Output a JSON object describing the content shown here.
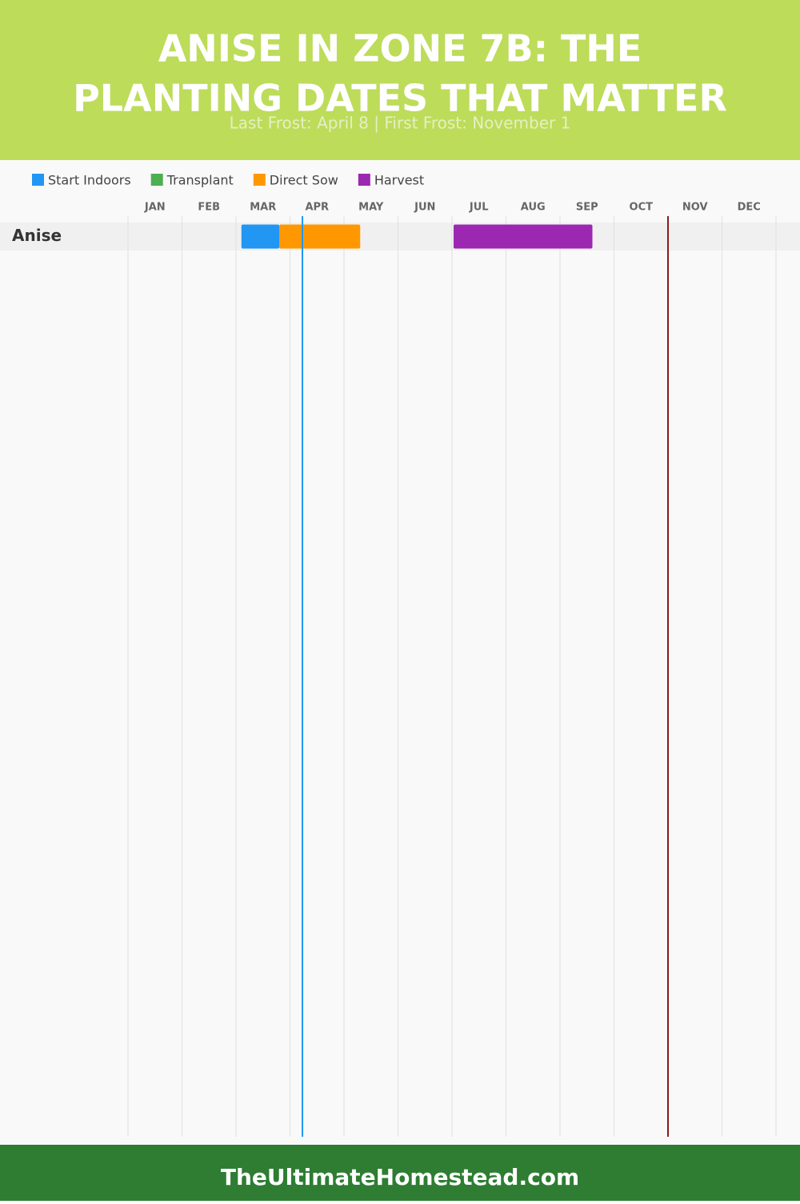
{
  "chart_data": {
    "type": "gantt",
    "title_lines": [
      "ANISE IN ZONE 7B: THE",
      "PLANTING DATES THAT MATTER"
    ],
    "subtitle": "Last Frost: April 8 | First Frost: November 1",
    "months": [
      "JAN",
      "FEB",
      "MAR",
      "APR",
      "MAY",
      "JUN",
      "JUL",
      "AUG",
      "SEP",
      "OCT",
      "NOV",
      "DEC"
    ],
    "xlim": [
      0,
      12
    ],
    "categories": [
      "Anise"
    ],
    "series": [
      {
        "name": "Start Indoors",
        "color": "#2196f3",
        "values": [
          [
            2.1,
            2.8
          ]
        ]
      },
      {
        "name": "Transplant",
        "color": "#4caf50",
        "values": [
          null
        ]
      },
      {
        "name": "Direct Sow",
        "color": "#ff9800",
        "values": [
          [
            2.8,
            4.3
          ]
        ]
      },
      {
        "name": "Harvest",
        "color": "#9c27b0",
        "values": [
          [
            6.03,
            8.6
          ]
        ]
      }
    ],
    "markers": [
      {
        "value": 3.23,
        "color": "#2196f3"
      },
      {
        "value": 10.0,
        "color": "#8b1a1a"
      }
    ]
  },
  "footer": "TheUltimateHomestead.com"
}
